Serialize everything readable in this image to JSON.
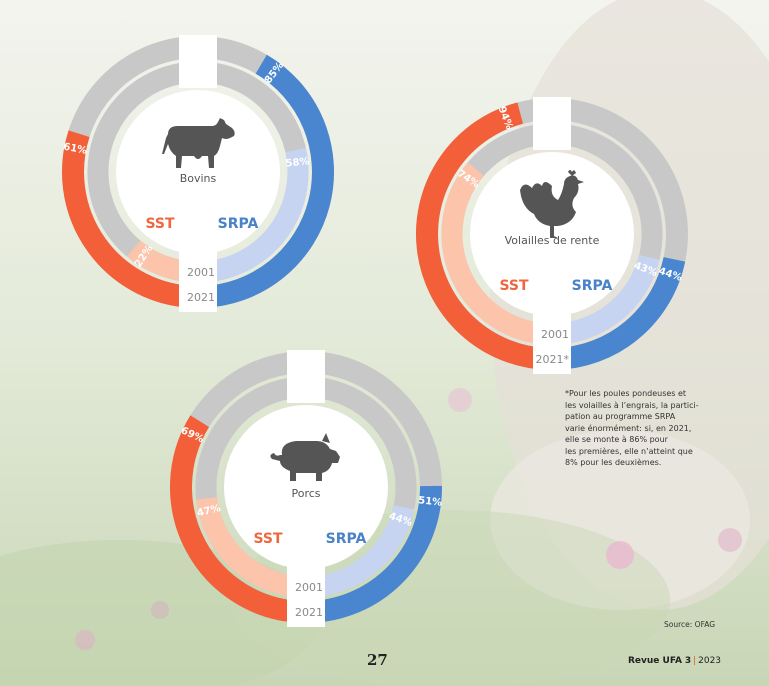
{
  "colors": {
    "sst_2021": "#f25f38",
    "sst_2001": "#fbc4ab",
    "srpa_2021": "#4a86d0",
    "srpa_2001": "#c6d4f2",
    "track": "#c8c8c8",
    "sst_text": "#f0673f",
    "srpa_text": "#4a82c8",
    "icon": "#555555"
  },
  "chart_data": [
    {
      "type": "pie",
      "subject": "Bovins",
      "icon": "cow-icon",
      "program_labels": [
        "SST",
        "SRPA"
      ],
      "year_labels": [
        "2001",
        "2021"
      ],
      "series": [
        {
          "program": "SST",
          "year": "2021",
          "value": 61,
          "label": "61%"
        },
        {
          "program": "SST",
          "year": "2001",
          "value": 22,
          "label": "22%"
        },
        {
          "program": "SRPA",
          "year": "2021",
          "value": 85,
          "label": "85%"
        },
        {
          "program": "SRPA",
          "year": "2001",
          "value": 58,
          "label": "58%"
        }
      ]
    },
    {
      "type": "pie",
      "subject": "Volailles de rente",
      "icon": "chicken-icon",
      "program_labels": [
        "SST",
        "SRPA"
      ],
      "year_labels": [
        "2001",
        "2021*"
      ],
      "series": [
        {
          "program": "SST",
          "year": "2021",
          "value": 94,
          "label": "94%"
        },
        {
          "program": "SST",
          "year": "2001",
          "value": 74,
          "label": "74%"
        },
        {
          "program": "SRPA",
          "year": "2021",
          "value": 44,
          "label": "44%"
        },
        {
          "program": "SRPA",
          "year": "2001",
          "value": 43,
          "label": "43%"
        }
      ]
    },
    {
      "type": "pie",
      "subject": "Porcs",
      "icon": "pig-icon",
      "program_labels": [
        "SST",
        "SRPA"
      ],
      "year_labels": [
        "2001",
        "2021"
      ],
      "series": [
        {
          "program": "SST",
          "year": "2021",
          "value": 69,
          "label": "69%"
        },
        {
          "program": "SST",
          "year": "2001",
          "value": 47,
          "label": "47%"
        },
        {
          "program": "SRPA",
          "year": "2021",
          "value": 51,
          "label": "51%"
        },
        {
          "program": "SRPA",
          "year": "2001",
          "value": 44,
          "label": "44%"
        }
      ]
    }
  ],
  "footnote": {
    "lines": [
      "*Pour les poules pondeuses et",
      "les volailles à l’engrais, la partici-",
      "pation au programme SRPA",
      "varie énormément: si, en 2021,",
      "elle se monte à 86% pour",
      "les premières, elle n’atteint que",
      "8% pour les deuxièmes."
    ]
  },
  "source": "Source: OFAG",
  "footer": {
    "page_number": "27",
    "journal_name": "Revue UFA",
    "issue": "3",
    "year": "2023"
  }
}
